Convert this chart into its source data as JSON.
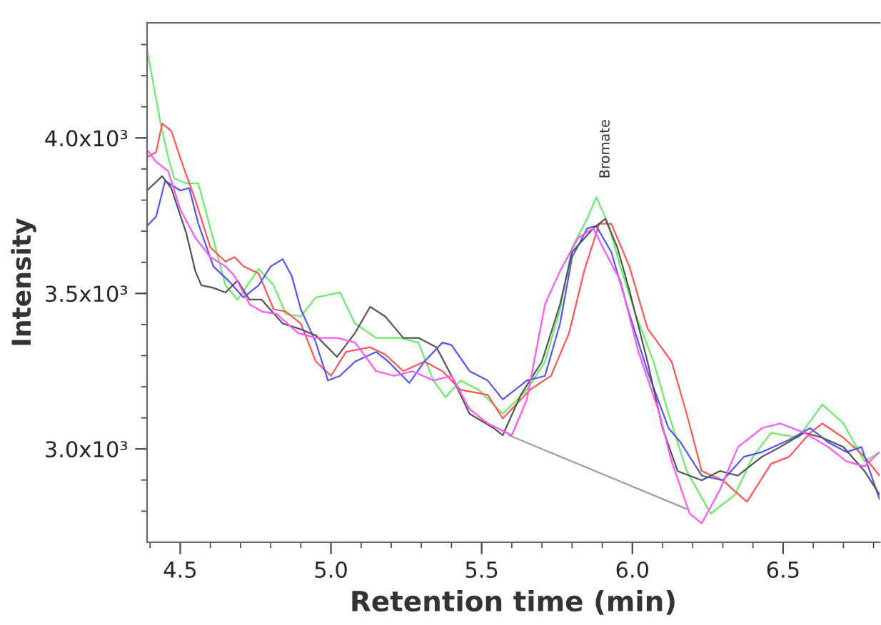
{
  "chart_data": {
    "type": "line",
    "xlabel": "Retention time (min)",
    "ylabel": "Intensity",
    "xlim": [
      4.39,
      6.82
    ],
    "ylim": [
      2700,
      4370
    ],
    "xticks": [
      {
        "value": 4.4,
        "label": null
      },
      4.5,
      {
        "value": 4.6,
        "label": null
      },
      {
        "value": 4.7,
        "label": null
      },
      {
        "value": 4.8,
        "label": null
      },
      {
        "value": 4.9,
        "label": null
      },
      {
        "value": 5.0,
        "label": "5.0"
      },
      {
        "value": 5.1,
        "label": null
      },
      {
        "value": 5.2,
        "label": null
      },
      {
        "value": 5.3,
        "label": null
      },
      {
        "value": 5.4,
        "label": null
      },
      5.5,
      {
        "value": 5.6,
        "label": null
      },
      {
        "value": 5.7,
        "label": null
      },
      {
        "value": 5.8,
        "label": null
      },
      {
        "value": 5.9,
        "label": null
      },
      {
        "value": 6.0,
        "label": "6.0"
      },
      {
        "value": 6.1,
        "label": null
      },
      {
        "value": 6.2,
        "label": null
      },
      {
        "value": 6.3,
        "label": null
      },
      {
        "value": 6.4,
        "label": null
      },
      6.5,
      {
        "value": 6.6,
        "label": null
      },
      {
        "value": 6.7,
        "label": null
      },
      {
        "value": 6.8,
        "label": null
      }
    ],
    "yticks": [
      {
        "value": 2800,
        "label": null
      },
      {
        "value": 2900,
        "label": null
      },
      {
        "value": 3000,
        "label": "3.0x10³"
      },
      {
        "value": 3100,
        "label": null
      },
      {
        "value": 3200,
        "label": null
      },
      {
        "value": 3300,
        "label": null
      },
      {
        "value": 3400,
        "label": null
      },
      {
        "value": 3500,
        "label": "3.5x10³"
      },
      {
        "value": 3600,
        "label": null
      },
      {
        "value": 3700,
        "label": null
      },
      {
        "value": 3800,
        "label": null
      },
      {
        "value": 3900,
        "label": null
      },
      {
        "value": 4000,
        "label": "4.0x10³"
      },
      {
        "value": 4100,
        "label": null
      },
      {
        "value": 4200,
        "label": null
      },
      {
        "value": 4300,
        "label": null
      }
    ],
    "grid": false,
    "legend": false,
    "marker": "none",
    "line_style": "solid",
    "annotations": [
      "Bromate"
    ],
    "series": [
      {
        "color": "#66ee66",
        "x": [
          4.39,
          4.435,
          4.46,
          4.48,
          4.52,
          4.56,
          4.6,
          4.65,
          4.69,
          4.76,
          4.81,
          4.85,
          4.9,
          4.95,
          5.03,
          5.08,
          5.15,
          5.23,
          5.29,
          5.34,
          5.38,
          5.43,
          5.49,
          5.57,
          5.65,
          5.71,
          5.76,
          5.8,
          5.85,
          5.88,
          5.92,
          5.96,
          6.01,
          6.07,
          6.12,
          6.18,
          6.26,
          6.34,
          6.4,
          6.46,
          6.55,
          6.63,
          6.7,
          6.77,
          6.82
        ],
        "values": [
          4283,
          4046,
          3938,
          3870,
          3854,
          3854,
          3709,
          3526,
          3480,
          3579,
          3526,
          3434,
          3426,
          3487,
          3503,
          3403,
          3357,
          3357,
          3342,
          3220,
          3166,
          3220,
          3190,
          3113,
          3190,
          3281,
          3449,
          3648,
          3740,
          3809,
          3724,
          3587,
          3434,
          3281,
          3113,
          2929,
          2792,
          2853,
          2975,
          3052,
          3036,
          3143,
          3082,
          2960,
          2990
        ]
      },
      {
        "color": "#ff5555",
        "x": [
          4.39,
          4.42,
          4.44,
          4.47,
          4.51,
          4.55,
          4.6,
          4.65,
          4.68,
          4.71,
          4.76,
          4.81,
          4.85,
          4.9,
          4.95,
          5.0,
          5.05,
          5.13,
          5.18,
          5.24,
          5.31,
          5.37,
          5.43,
          5.52,
          5.57,
          5.66,
          5.73,
          5.79,
          5.84,
          5.89,
          5.93,
          5.99,
          6.05,
          6.13,
          6.18,
          6.23,
          6.3,
          6.38,
          6.46,
          6.52,
          6.59,
          6.63,
          6.7,
          6.77,
          6.82
        ],
        "values": [
          3938,
          3954,
          4046,
          4023,
          3908,
          3801,
          3648,
          3602,
          3617,
          3587,
          3564,
          3449,
          3442,
          3403,
          3281,
          3235,
          3312,
          3327,
          3304,
          3250,
          3281,
          3250,
          3190,
          3174,
          3098,
          3190,
          3235,
          3373,
          3572,
          3724,
          3724,
          3587,
          3388,
          3281,
          3113,
          2929,
          2899,
          2830,
          2952,
          2975,
          3052,
          3082,
          3036,
          2975,
          2914
        ]
      },
      {
        "color": "#5555ff",
        "x": [
          4.39,
          4.42,
          4.45,
          4.5,
          4.53,
          4.56,
          4.61,
          4.66,
          4.71,
          4.76,
          4.8,
          4.84,
          4.87,
          4.9,
          4.95,
          4.99,
          5.03,
          5.08,
          5.15,
          5.19,
          5.26,
          5.31,
          5.37,
          5.4,
          5.46,
          5.52,
          5.57,
          5.65,
          5.71,
          5.76,
          5.8,
          5.85,
          5.88,
          5.93,
          5.99,
          6.05,
          6.12,
          6.16,
          6.23,
          6.3,
          6.37,
          6.43,
          6.52,
          6.59,
          6.65,
          6.71,
          6.76,
          6.82
        ],
        "values": [
          3717,
          3747,
          3862,
          3831,
          3839,
          3724,
          3587,
          3541,
          3487,
          3526,
          3587,
          3610,
          3556,
          3449,
          3342,
          3220,
          3235,
          3281,
          3312,
          3281,
          3212,
          3281,
          3342,
          3334,
          3250,
          3220,
          3159,
          3220,
          3235,
          3403,
          3617,
          3709,
          3717,
          3633,
          3434,
          3250,
          3067,
          3021,
          2914,
          2899,
          2975,
          2990,
          3029,
          3067,
          3021,
          2990,
          3006,
          2838
        ]
      },
      {
        "color": "#555555",
        "x": [
          4.39,
          4.44,
          4.47,
          4.52,
          4.55,
          4.57,
          4.61,
          4.65,
          4.69,
          4.73,
          4.77,
          4.84,
          4.89,
          4.95,
          5.02,
          5.08,
          5.13,
          5.18,
          5.24,
          5.29,
          5.35,
          5.4,
          5.46,
          5.54,
          5.57,
          5.63,
          5.7,
          5.76,
          5.8,
          5.87,
          5.91,
          5.95,
          5.99,
          6.05,
          6.1,
          6.15,
          6.23,
          6.29,
          6.35,
          6.43,
          6.49,
          6.57,
          6.63,
          6.7,
          6.77,
          6.82
        ],
        "values": [
          3831,
          3877,
          3839,
          3694,
          3572,
          3526,
          3518,
          3503,
          3541,
          3480,
          3480,
          3403,
          3388,
          3365,
          3296,
          3373,
          3457,
          3426,
          3357,
          3357,
          3327,
          3235,
          3113,
          3067,
          3044,
          3174,
          3281,
          3465,
          3633,
          3709,
          3740,
          3648,
          3510,
          3281,
          3067,
          2929,
          2899,
          2929,
          2914,
          2975,
          3006,
          3052,
          3036,
          3006,
          2929,
          2853
        ]
      },
      {
        "color": "#ff55ff",
        "x": [
          4.39,
          4.42,
          4.46,
          4.5,
          4.55,
          4.6,
          4.65,
          4.68,
          4.73,
          4.77,
          4.82,
          4.89,
          4.95,
          5.02,
          5.08,
          5.15,
          5.21,
          5.27,
          5.34,
          5.4,
          5.46,
          5.52,
          5.6,
          5.65,
          5.71,
          5.76,
          5.82,
          5.87,
          5.91,
          5.96,
          6.02,
          6.09,
          6.13,
          6.19,
          6.23,
          6.29,
          6.35,
          6.43,
          6.49,
          6.57,
          6.65,
          6.71,
          6.77,
          6.82
        ],
        "values": [
          3961,
          3923,
          3893,
          3770,
          3679,
          3617,
          3587,
          3556,
          3465,
          3442,
          3434,
          3373,
          3357,
          3357,
          3342,
          3250,
          3235,
          3250,
          3220,
          3235,
          3128,
          3082,
          3044,
          3159,
          3465,
          3572,
          3679,
          3709,
          3633,
          3541,
          3312,
          3113,
          2960,
          2792,
          2761,
          2868,
          3006,
          3067,
          3082,
          3052,
          3006,
          2960,
          2944,
          2990
        ]
      },
      {
        "color": "#a0a0a0",
        "x": [
          5.59,
          6.18
        ],
        "values": [
          3044,
          2807
        ]
      }
    ]
  }
}
